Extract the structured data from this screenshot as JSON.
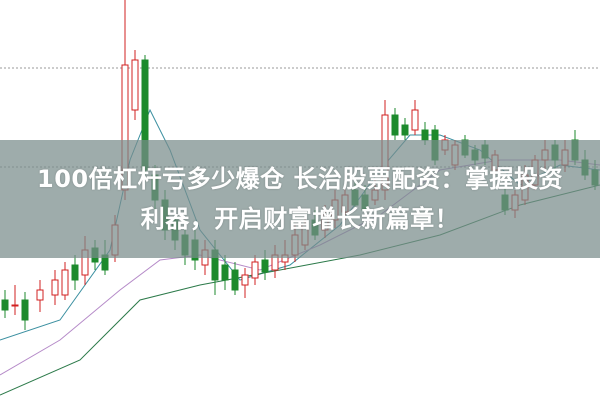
{
  "headline": {
    "line1": "100倍杠杆亏多少爆仓 长治股票配资：掌握投资",
    "line2": "利器，开启财富增长新篇章！"
  },
  "colors": {
    "up": "#d22020",
    "down": "#1c8a2c",
    "banner": "#788c8a",
    "ma_blue": "#3a8fa0",
    "ma_purple": "#b58ac8",
    "ma_green": "#2c7a4a"
  }
}
